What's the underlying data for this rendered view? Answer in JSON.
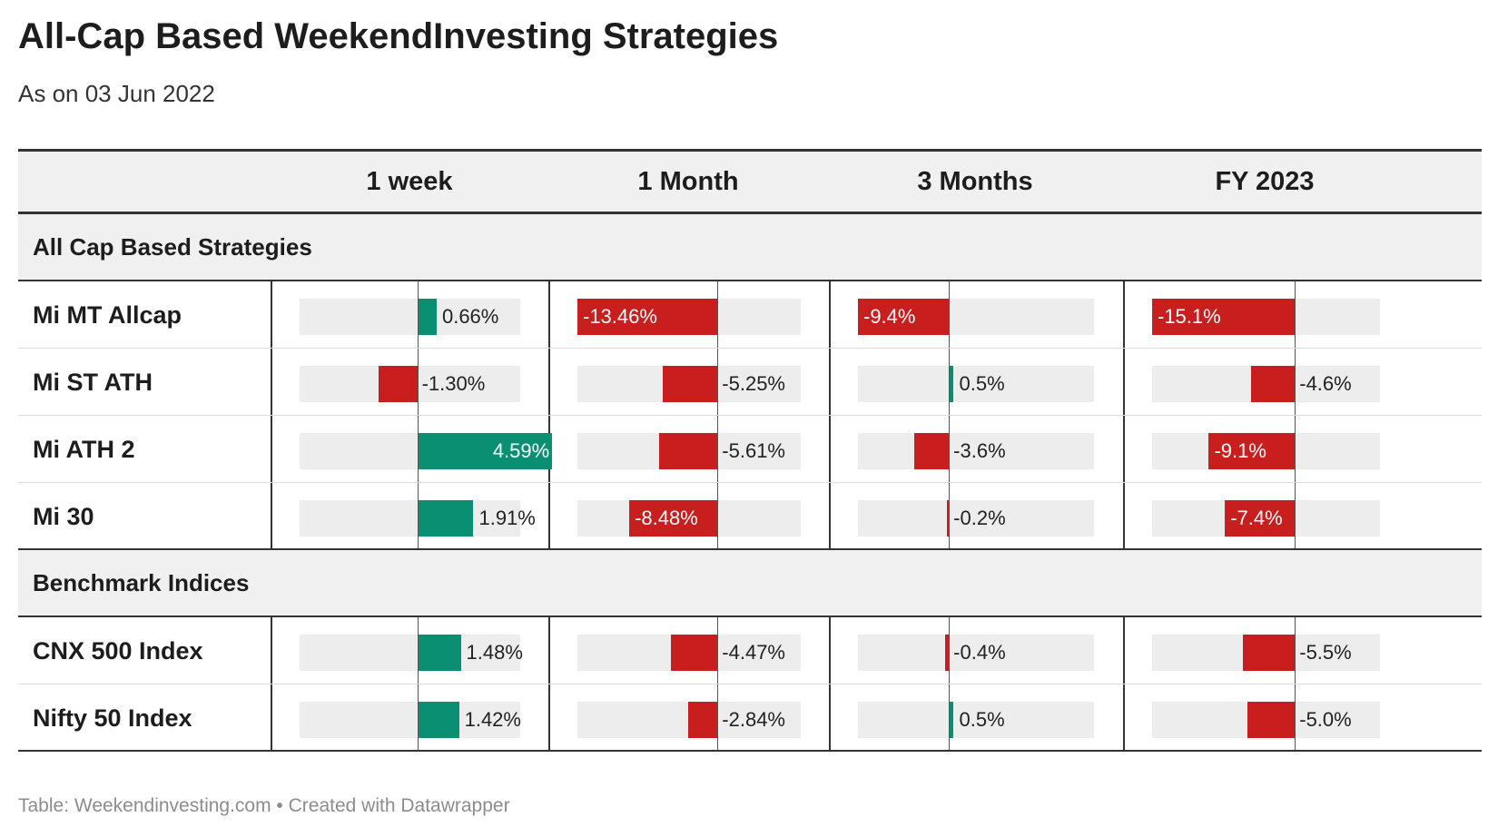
{
  "title": "All-Cap Based WeekendInvesting Strategies",
  "subtitle": "As on 03 Jun 2022",
  "footer": "Table: Weekendinvesting.com • Created with Datawrapper",
  "colors": {
    "positive": "#0a8f72",
    "negative": "#c81e1e",
    "track": "#ededed",
    "header_bg": "#f0f0f0"
  },
  "chart_data": {
    "type": "table",
    "columns": [
      "1 week",
      "1 Month",
      "3 Months",
      "FY 2023"
    ],
    "column_ranges": [
      [
        -4,
        3.5
      ],
      [
        -13.46,
        8
      ],
      [
        -9.4,
        15
      ],
      [
        -15.1,
        9
      ]
    ],
    "groups": [
      {
        "label": "All Cap Based Strategies",
        "rows": [
          {
            "name": "Mi MT Allcap",
            "values": [
              0.66,
              -13.46,
              -9.4,
              -15.1
            ],
            "labels": [
              "0.66%",
              "-13.46%",
              "-9.4%",
              "-15.1%"
            ]
          },
          {
            "name": "Mi ST ATH",
            "values": [
              -1.3,
              -5.25,
              0.5,
              -4.6
            ],
            "labels": [
              "-1.30%",
              "-5.25%",
              "0.5%",
              "-4.6%"
            ]
          },
          {
            "name": "Mi ATH 2",
            "values": [
              4.59,
              -5.61,
              -3.6,
              -9.1
            ],
            "labels": [
              "4.59%",
              "-5.61%",
              "-3.6%",
              "-9.1%"
            ]
          },
          {
            "name": "Mi 30",
            "values": [
              1.91,
              -8.48,
              -0.2,
              -7.4
            ],
            "labels": [
              "1.91%",
              "-8.48%",
              "-0.2%",
              "-7.4%"
            ]
          }
        ]
      },
      {
        "label": "Benchmark Indices",
        "rows": [
          {
            "name": "CNX 500 Index",
            "values": [
              1.48,
              -4.47,
              -0.4,
              -5.5
            ],
            "labels": [
              "1.48%",
              "-4.47%",
              "-0.4%",
              "-5.5%"
            ]
          },
          {
            "name": "Nifty 50 Index",
            "values": [
              1.42,
              -2.84,
              0.5,
              -5.0
            ],
            "labels": [
              "1.42%",
              "-2.84%",
              "0.5%",
              "-5.0%"
            ]
          }
        ]
      }
    ]
  }
}
